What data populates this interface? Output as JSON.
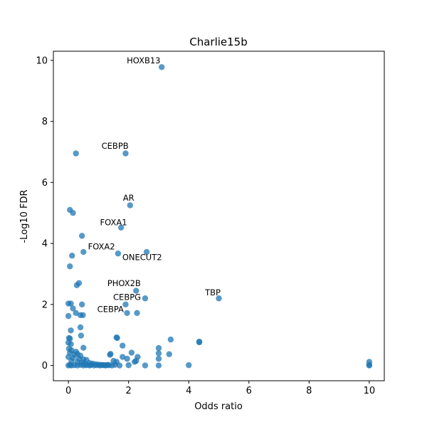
{
  "chart_data": {
    "type": "scatter",
    "title": "Charlie15b",
    "xlabel": "Odds ratio",
    "ylabel": "-Log10 FDR",
    "xlim": [
      -0.5,
      10.5
    ],
    "ylim": [
      -0.5,
      10.3
    ],
    "xticks": [
      "0",
      "2",
      "4",
      "6",
      "8",
      "10"
    ],
    "yticks": [
      "0",
      "2",
      "4",
      "6",
      "8",
      "10"
    ],
    "grid": false,
    "point_color": "#1f77b4",
    "points": [
      [
        3.1,
        9.78
      ],
      [
        0.25,
        6.95
      ],
      [
        1.9,
        6.95
      ],
      [
        2.05,
        5.25
      ],
      [
        0.05,
        5.1
      ],
      [
        0.15,
        5.0
      ],
      [
        1.75,
        4.52
      ],
      [
        0.45,
        4.25
      ],
      [
        2.6,
        3.72
      ],
      [
        0.5,
        3.72
      ],
      [
        1.65,
        3.67
      ],
      [
        0.12,
        3.6
      ],
      [
        0.05,
        3.25
      ],
      [
        0.35,
        2.7
      ],
      [
        0.28,
        2.63
      ],
      [
        2.25,
        2.45
      ],
      [
        2.55,
        2.2
      ],
      [
        5.0,
        2.2
      ],
      [
        0.0,
        2.03
      ],
      [
        0.08,
        2.03
      ],
      [
        0.45,
        2.0
      ],
      [
        1.9,
        2.0
      ],
      [
        0.15,
        1.87
      ],
      [
        0.25,
        1.72
      ],
      [
        1.95,
        1.72
      ],
      [
        2.28,
        1.72
      ],
      [
        0.4,
        1.65
      ],
      [
        0.48,
        1.65
      ],
      [
        0.0,
        1.62
      ],
      [
        0.4,
        1.25
      ],
      [
        0.08,
        1.15
      ],
      [
        0.42,
        0.98
      ],
      [
        1.6,
        0.92
      ],
      [
        1.62,
        0.9
      ],
      [
        3.4,
        0.85
      ],
      [
        4.35,
        0.78
      ],
      [
        4.35,
        0.76
      ],
      [
        1.8,
        0.65
      ],
      [
        3.0,
        0.57
      ],
      [
        0.5,
        0.58
      ],
      [
        2.1,
        0.42
      ],
      [
        3.0,
        0.4
      ],
      [
        3.35,
        0.37
      ],
      [
        1.4,
        0.38
      ],
      [
        1.38,
        0.35
      ],
      [
        1.8,
        0.28
      ],
      [
        2.3,
        0.28
      ],
      [
        1.95,
        0.22
      ],
      [
        3.0,
        0.22
      ],
      [
        2.25,
        0.15
      ],
      [
        2.2,
        0.12
      ],
      [
        1.5,
        0.15
      ],
      [
        1.6,
        0.12
      ],
      [
        0.02,
        0.9
      ],
      [
        0.05,
        0.88
      ],
      [
        0.0,
        0.75
      ],
      [
        0.08,
        0.7
      ],
      [
        0.02,
        0.55
      ],
      [
        0.1,
        0.5
      ],
      [
        0.25,
        0.45
      ],
      [
        0.05,
        0.42
      ],
      [
        0.3,
        0.38
      ],
      [
        0.2,
        0.35
      ],
      [
        0.4,
        0.32
      ],
      [
        0.0,
        0.28
      ],
      [
        0.15,
        0.25
      ],
      [
        0.35,
        0.22
      ],
      [
        0.5,
        0.2
      ],
      [
        0.6,
        0.18
      ],
      [
        0.1,
        0.15
      ],
      [
        0.3,
        0.12
      ],
      [
        0.45,
        0.1
      ],
      [
        0.7,
        0.08
      ],
      [
        0.8,
        0.06
      ],
      [
        0.55,
        0.05
      ],
      [
        0.9,
        0.04
      ],
      [
        1.0,
        0.03
      ],
      [
        1.1,
        0.02
      ],
      [
        1.2,
        0.01
      ],
      [
        1.3,
        0.02
      ],
      [
        0.0,
        0.0
      ],
      [
        0.05,
        0.02
      ],
      [
        0.1,
        0.0
      ],
      [
        0.2,
        0.01
      ],
      [
        0.3,
        0.0
      ],
      [
        0.4,
        0.02
      ],
      [
        0.5,
        0.0
      ],
      [
        0.6,
        0.01
      ],
      [
        0.7,
        0.0
      ],
      [
        0.75,
        0.02
      ],
      [
        0.85,
        0.0
      ],
      [
        0.95,
        0.01
      ],
      [
        1.05,
        0.0
      ],
      [
        1.15,
        0.01
      ],
      [
        1.25,
        0.0
      ],
      [
        1.35,
        0.01
      ],
      [
        1.45,
        0.0
      ],
      [
        1.55,
        0.02
      ],
      [
        1.7,
        0.0
      ],
      [
        2.0,
        0.01
      ],
      [
        2.55,
        0.0
      ],
      [
        3.0,
        0.0
      ],
      [
        4.0,
        0.01
      ],
      [
        10.0,
        0.12
      ],
      [
        10.0,
        0.02
      ],
      [
        10.0,
        0.0
      ]
    ],
    "annotations": [
      {
        "text": "HOXB13",
        "x": 2.5,
        "y": 9.9
      },
      {
        "text": "CEBPB",
        "x": 1.55,
        "y": 7.1
      },
      {
        "text": "AR",
        "x": 2.0,
        "y": 5.4
      },
      {
        "text": "FOXA1",
        "x": 1.5,
        "y": 4.6
      },
      {
        "text": "FOXA2",
        "x": 1.1,
        "y": 3.8
      },
      {
        "text": "ONECUT2",
        "x": 2.45,
        "y": 3.45
      },
      {
        "text": "PHOX2B",
        "x": 1.85,
        "y": 2.6
      },
      {
        "text": "TBP",
        "x": 4.8,
        "y": 2.3
      },
      {
        "text": "CEBPG",
        "x": 1.95,
        "y": 2.15
      },
      {
        "text": "CEBPA",
        "x": 1.4,
        "y": 1.75
      }
    ]
  }
}
